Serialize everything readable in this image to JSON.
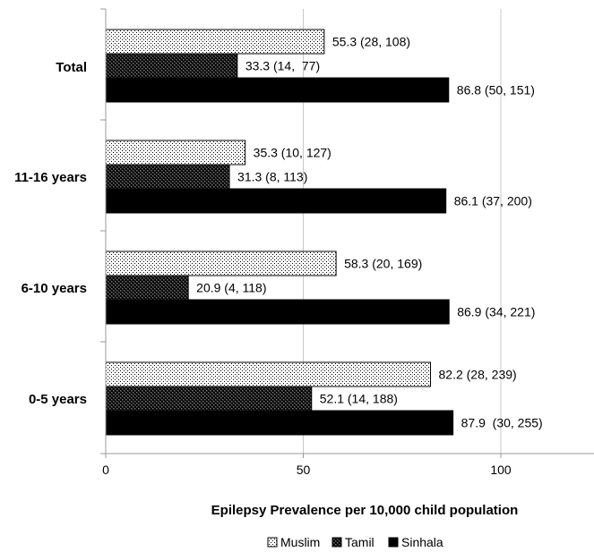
{
  "chart_data": {
    "type": "bar",
    "orientation": "horizontal",
    "categories": [
      "Total",
      "11-16 years",
      "6-10 years",
      "0-5 years"
    ],
    "series": [
      {
        "name": "Muslim",
        "values": [
          55.3,
          35.3,
          58.3,
          82.2
        ],
        "labels": [
          "55.3 (28, 108)",
          "35.3 (10, 127)",
          "58.3 (20, 169)",
          "82.2 (28, 239)"
        ],
        "fill": "dotted"
      },
      {
        "name": "Tamil",
        "values": [
          33.3,
          31.3,
          20.9,
          52.1
        ],
        "labels": [
          "33.3 (14,  77)",
          "31.3 (8, 113)",
          "20.9 (4, 118)",
          "52.1 (14, 188)"
        ],
        "fill": "checkered"
      },
      {
        "name": "Sinhala",
        "values": [
          86.8,
          86.1,
          86.9,
          87.9
        ],
        "labels": [
          "86.8 (50, 151)",
          "86.1 (37, 200)",
          "86.9 (34, 221)",
          "87.9  (30, 255)"
        ],
        "fill": "solid"
      }
    ],
    "xlabel": "Epilepsy Prevalence per 10,000 child population",
    "ylabel": "",
    "xlim": [
      0,
      123
    ],
    "xticks": [
      0,
      50,
      100
    ],
    "grid": true,
    "legend_position": "bottom"
  },
  "colors": {
    "solid": "#000000",
    "axis": "#9a9a9a",
    "grid": "#c8c8c8"
  }
}
